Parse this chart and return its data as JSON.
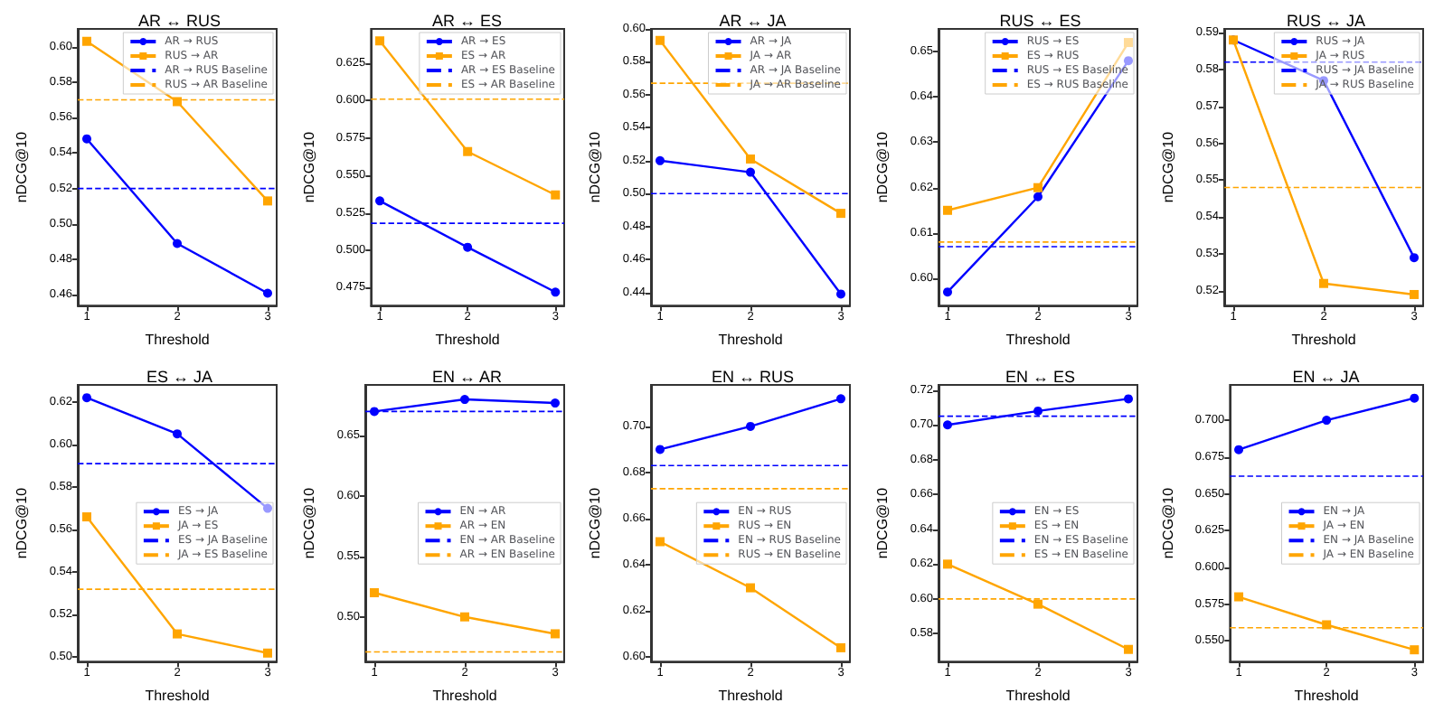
{
  "chart_data": [
    {
      "type": "line",
      "title": "AR ↔ RUS",
      "xlabel": "Threshold",
      "ylabel": "nDCG@10",
      "x": [
        1,
        2,
        3
      ],
      "xlim": [
        0.9,
        3.1
      ],
      "xticks": [
        1,
        2,
        3
      ],
      "ylim": [
        0.454,
        0.61
      ],
      "yticks": [
        0.46,
        0.48,
        {
          "value": 0.5,
          "label": "0.50"
        },
        0.52,
        0.54,
        0.56,
        0.58,
        {
          "value": 0.6,
          "label": "0.60"
        }
      ],
      "legend": "top right",
      "grid": false,
      "series": [
        {
          "name": "AR → RUS",
          "color": "#0000ff",
          "marker": "circle",
          "values": [
            0.548,
            0.489,
            0.461
          ]
        },
        {
          "name": "RUS → AR",
          "color": "#ffa500",
          "marker": "square",
          "values": [
            0.603,
            0.569,
            0.513
          ]
        }
      ],
      "ref_lines": [
        {
          "axis": "y",
          "value": 0.52,
          "label": "AR → RUS Baseline",
          "color": "#0000ff",
          "line_style": "dashed"
        },
        {
          "axis": "y",
          "value": 0.57,
          "label": "RUS → AR Baseline",
          "color": "#ffa500",
          "line_style": "dashed"
        }
      ]
    },
    {
      "type": "line",
      "title": "AR ↔ ES",
      "xlabel": "Threshold",
      "ylabel": "nDCG@10",
      "x": [
        1,
        2,
        3
      ],
      "xlim": [
        0.9,
        3.1
      ],
      "xticks": [
        1,
        2,
        3
      ],
      "ylim": [
        0.463,
        0.648
      ],
      "yticks": [
        0.475,
        {
          "value": 0.5,
          "label": "0.500"
        },
        0.525,
        {
          "value": 0.55,
          "label": "0.550"
        },
        0.575,
        {
          "value": 0.6,
          "label": "0.600"
        },
        0.625
      ],
      "legend": "top right",
      "grid": false,
      "series": [
        {
          "name": "AR → ES",
          "color": "#0000ff",
          "marker": "circle",
          "values": [
            0.533,
            0.502,
            0.472
          ]
        },
        {
          "name": "ES → AR",
          "color": "#ffa500",
          "marker": "square",
          "values": [
            0.64,
            0.566,
            0.537
          ]
        }
      ],
      "ref_lines": [
        {
          "axis": "y",
          "value": 0.518,
          "label": "AR → ES Baseline",
          "color": "#0000ff",
          "line_style": "dashed"
        },
        {
          "axis": "y",
          "value": 0.601,
          "label": "ES → AR Baseline",
          "color": "#ffa500",
          "line_style": "dashed"
        }
      ]
    },
    {
      "type": "line",
      "title": "AR ↔ JA",
      "xlabel": "Threshold",
      "ylabel": "nDCG@10",
      "x": [
        1,
        2,
        3
      ],
      "xlim": [
        0.9,
        3.1
      ],
      "xticks": [
        1,
        2,
        3
      ],
      "ylim": [
        0.432,
        0.6
      ],
      "yticks": [
        0.44,
        0.46,
        0.48,
        {
          "value": 0.5,
          "label": "0.50"
        },
        0.52,
        0.54,
        0.56,
        0.58,
        {
          "value": 0.6,
          "label": "0.60"
        }
      ],
      "legend": "top right",
      "grid": false,
      "series": [
        {
          "name": "AR → JA",
          "color": "#0000ff",
          "marker": "circle",
          "values": [
            0.52,
            0.513,
            0.439
          ]
        },
        {
          "name": "JA → AR",
          "color": "#ffa500",
          "marker": "square",
          "values": [
            0.593,
            0.521,
            0.488
          ]
        }
      ],
      "ref_lines": [
        {
          "axis": "y",
          "value": 0.5,
          "label": "AR → JA Baseline",
          "color": "#0000ff",
          "line_style": "dashed"
        },
        {
          "axis": "y",
          "value": 0.567,
          "label": "JA → AR Baseline",
          "color": "#ffa500",
          "line_style": "dashed"
        }
      ]
    },
    {
      "type": "line",
      "title": "RUS ↔ ES",
      "xlabel": "Threshold",
      "ylabel": "nDCG@10",
      "x": [
        1,
        2,
        3
      ],
      "xlim": [
        0.9,
        3.1
      ],
      "xticks": [
        1,
        2,
        3
      ],
      "ylim": [
        0.594,
        0.655
      ],
      "yticks": [
        {
          "value": 0.6,
          "label": "0.60"
        },
        0.61,
        0.62,
        0.63,
        0.64,
        0.65
      ],
      "legend": "top right",
      "grid": false,
      "series": [
        {
          "name": "RUS → ES",
          "color": "#0000ff",
          "marker": "circle",
          "values": [
            0.597,
            0.618,
            0.648
          ]
        },
        {
          "name": "ES → RUS",
          "color": "#ffa500",
          "marker": "square",
          "values": [
            0.615,
            0.62,
            0.652
          ]
        }
      ],
      "ref_lines": [
        {
          "axis": "y",
          "value": 0.607,
          "label": "RUS → ES Baseline",
          "color": "#0000ff",
          "line_style": "dashed"
        },
        {
          "axis": "y",
          "value": 0.608,
          "label": "ES → RUS Baseline",
          "color": "#ffa500",
          "line_style": "dashed"
        }
      ]
    },
    {
      "type": "line",
      "title": "RUS ↔ JA",
      "xlabel": "Threshold",
      "ylabel": "nDCG@10",
      "x": [
        1,
        2,
        3
      ],
      "xlim": [
        0.9,
        3.1
      ],
      "xticks": [
        1,
        2,
        3
      ],
      "ylim": [
        0.516,
        0.591
      ],
      "yticks": [
        0.52,
        0.53,
        0.54,
        0.55,
        0.56,
        0.57,
        0.58,
        0.59
      ],
      "legend": "top right",
      "grid": false,
      "series": [
        {
          "name": "RUS → JA",
          "color": "#0000ff",
          "marker": "circle",
          "values": [
            0.588,
            0.577,
            0.529
          ]
        },
        {
          "name": "JA → RUS",
          "color": "#ffa500",
          "marker": "square",
          "values": [
            0.588,
            0.522,
            0.519
          ]
        }
      ],
      "ref_lines": [
        {
          "axis": "y",
          "value": 0.582,
          "label": "RUS → JA Baseline",
          "color": "#0000ff",
          "line_style": "dashed"
        },
        {
          "axis": "y",
          "value": 0.548,
          "label": "JA → RUS Baseline",
          "color": "#ffa500",
          "line_style": "dashed"
        }
      ]
    },
    {
      "type": "line",
      "title": "ES ↔ JA",
      "xlabel": "Threshold",
      "ylabel": "nDCG@10",
      "x": [
        1,
        2,
        3
      ],
      "xlim": [
        0.9,
        3.1
      ],
      "xticks": [
        1,
        2,
        3
      ],
      "ylim": [
        0.498,
        0.628
      ],
      "yticks": [
        {
          "value": 0.5,
          "label": "0.50"
        },
        0.52,
        0.54,
        0.56,
        0.58,
        {
          "value": 0.6,
          "label": "0.60"
        },
        0.62
      ],
      "legend": "right",
      "grid": false,
      "series": [
        {
          "name": "ES → JA",
          "color": "#0000ff",
          "marker": "circle",
          "values": [
            0.622,
            0.605,
            0.57
          ]
        },
        {
          "name": "JA → ES",
          "color": "#ffa500",
          "marker": "square",
          "values": [
            0.566,
            0.511,
            0.502
          ]
        }
      ],
      "ref_lines": [
        {
          "axis": "y",
          "value": 0.591,
          "label": "ES → JA Baseline",
          "color": "#0000ff",
          "line_style": "dashed"
        },
        {
          "axis": "y",
          "value": 0.532,
          "label": "JA → ES Baseline",
          "color": "#ffa500",
          "line_style": "dashed"
        }
      ]
    },
    {
      "type": "line",
      "title": "EN ↔ AR",
      "xlabel": "Threshold",
      "ylabel": "nDCG@10",
      "x": [
        1,
        2,
        3
      ],
      "xlim": [
        0.9,
        3.1
      ],
      "xticks": [
        1,
        2,
        3
      ],
      "ylim": [
        0.463,
        0.692
      ],
      "yticks": [
        {
          "value": 0.5,
          "label": "0.50"
        },
        0.55,
        {
          "value": 0.6,
          "label": "0.60"
        },
        0.65
      ],
      "legend": "right",
      "grid": false,
      "series": [
        {
          "name": "EN → AR",
          "color": "#0000ff",
          "marker": "circle",
          "values": [
            0.67,
            0.68,
            0.677
          ]
        },
        {
          "name": "AR → EN",
          "color": "#ffa500",
          "marker": "square",
          "values": [
            0.52,
            0.5,
            0.486
          ]
        }
      ],
      "ref_lines": [
        {
          "axis": "y",
          "value": 0.67,
          "label": "EN → AR Baseline",
          "color": "#0000ff",
          "line_style": "dashed"
        },
        {
          "axis": "y",
          "value": 0.471,
          "label": "AR → EN Baseline",
          "color": "#ffa500",
          "line_style": "dashed"
        }
      ]
    },
    {
      "type": "line",
      "title": "EN ↔ RUS",
      "xlabel": "Threshold",
      "ylabel": "nDCG@10",
      "x": [
        1,
        2,
        3
      ],
      "xlim": [
        0.9,
        3.1
      ],
      "xticks": [
        1,
        2,
        3
      ],
      "ylim": [
        0.598,
        0.718
      ],
      "yticks": [
        {
          "value": 0.6,
          "label": "0.60"
        },
        0.62,
        0.64,
        0.66,
        0.68,
        {
          "value": 0.7,
          "label": "0.70"
        }
      ],
      "legend": "right",
      "grid": false,
      "series": [
        {
          "name": "EN → RUS",
          "color": "#0000ff",
          "marker": "circle",
          "values": [
            0.69,
            0.7,
            0.712
          ]
        },
        {
          "name": "RUS → EN",
          "color": "#ffa500",
          "marker": "square",
          "values": [
            0.65,
            0.63,
            0.604
          ]
        }
      ],
      "ref_lines": [
        {
          "axis": "y",
          "value": 0.683,
          "label": "EN → RUS Baseline",
          "color": "#0000ff",
          "line_style": "dashed"
        },
        {
          "axis": "y",
          "value": 0.673,
          "label": "RUS → EN Baseline",
          "color": "#ffa500",
          "line_style": "dashed"
        }
      ]
    },
    {
      "type": "line",
      "title": "EN ↔ ES",
      "xlabel": "Threshold",
      "ylabel": "nDCG@10",
      "x": [
        1,
        2,
        3
      ],
      "xlim": [
        0.9,
        3.1
      ],
      "xticks": [
        1,
        2,
        3
      ],
      "ylim": [
        0.564,
        0.723
      ],
      "yticks": [
        0.58,
        {
          "value": 0.6,
          "label": "0.60"
        },
        0.62,
        0.64,
        0.66,
        0.68,
        {
          "value": 0.7,
          "label": "0.70"
        },
        0.72
      ],
      "legend": "right",
      "grid": false,
      "series": [
        {
          "name": "EN → ES",
          "color": "#0000ff",
          "marker": "circle",
          "values": [
            0.7,
            0.708,
            0.715
          ]
        },
        {
          "name": "ES → EN",
          "color": "#ffa500",
          "marker": "square",
          "values": [
            0.62,
            0.597,
            0.571
          ]
        }
      ],
      "ref_lines": [
        {
          "axis": "y",
          "value": 0.705,
          "label": "EN → ES Baseline",
          "color": "#0000ff",
          "line_style": "dashed"
        },
        {
          "axis": "y",
          "value": 0.6,
          "label": "ES → EN Baseline",
          "color": "#ffa500",
          "line_style": "dashed"
        }
      ]
    },
    {
      "type": "line",
      "title": "EN ↔ JA",
      "xlabel": "Threshold",
      "ylabel": "nDCG@10",
      "x": [
        1,
        2,
        3
      ],
      "xlim": [
        0.9,
        3.1
      ],
      "xticks": [
        1,
        2,
        3
      ],
      "ylim": [
        0.536,
        0.724
      ],
      "yticks": [
        {
          "value": 0.55,
          "label": "0.550"
        },
        0.575,
        {
          "value": 0.6,
          "label": "0.600"
        },
        0.625,
        {
          "value": 0.65,
          "label": "0.650"
        },
        0.675,
        {
          "value": 0.7,
          "label": "0.700"
        }
      ],
      "legend": "right",
      "grid": false,
      "series": [
        {
          "name": "EN → JA",
          "color": "#0000ff",
          "marker": "circle",
          "values": [
            0.68,
            0.7,
            0.715
          ]
        },
        {
          "name": "JA → EN",
          "color": "#ffa500",
          "marker": "square",
          "values": [
            0.58,
            0.561,
            0.544
          ]
        }
      ],
      "ref_lines": [
        {
          "axis": "y",
          "value": 0.662,
          "label": "EN → JA Baseline",
          "color": "#0000ff",
          "line_style": "dashed"
        },
        {
          "axis": "y",
          "value": 0.559,
          "label": "JA → EN Baseline",
          "color": "#ffa500",
          "line_style": "dashed"
        }
      ]
    }
  ]
}
